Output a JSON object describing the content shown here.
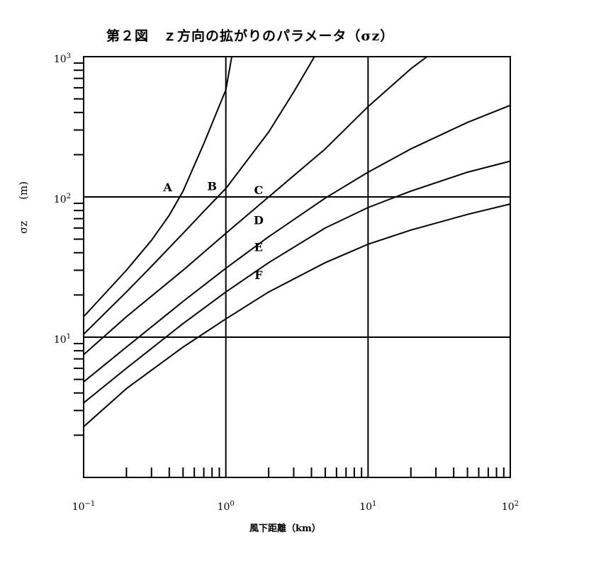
{
  "title": "第２図　ｚ方向の拡がりのパラメータ（σz）",
  "xlabel": "風下距離（km）",
  "ylabel": "σz　　(m)",
  "chart_data": {
    "type": "line",
    "scale": {
      "x": "log",
      "y": "log"
    },
    "xlim": [
      0.1,
      100
    ],
    "ylim": [
      1,
      1000
    ],
    "grid": true,
    "x_ticks": [
      {
        "value": 0.1,
        "base": "10",
        "exp": "−1"
      },
      {
        "value": 1,
        "base": "10",
        "exp": "0"
      },
      {
        "value": 10,
        "base": "10",
        "exp": "1"
      },
      {
        "value": 100,
        "base": "10",
        "exp": "2"
      }
    ],
    "y_ticks": [
      {
        "value": 10,
        "base": "10",
        "exp": "1"
      },
      {
        "value": 100,
        "base": "10",
        "exp": "2"
      },
      {
        "value": 1000,
        "base": "10",
        "exp": "3"
      }
    ],
    "series": [
      {
        "name": "A",
        "x": [
          0.1,
          0.2,
          0.3,
          0.4,
          0.5,
          0.7,
          1.0,
          1.1
        ],
        "y": [
          14,
          30,
          49,
          74,
          110,
          240,
          580,
          1000
        ],
        "label_at": [
          0.39,
          110
        ]
      },
      {
        "name": "B",
        "x": [
          0.1,
          0.2,
          0.3,
          0.5,
          0.7,
          1.0,
          2.0,
          3.0,
          4.2
        ],
        "y": [
          10.5,
          21,
          32,
          55,
          79,
          115,
          290,
          560,
          1000
        ],
        "label_at": [
          0.8,
          112
        ]
      },
      {
        "name": "C",
        "x": [
          0.1,
          0.2,
          0.5,
          1.0,
          2.0,
          5.0,
          10.0,
          20.0,
          26.0
        ],
        "y": [
          7.5,
          14,
          30,
          55,
          100,
          220,
          440,
          820,
          1000
        ],
        "label_at": [
          1.7,
          105
        ]
      },
      {
        "name": "D",
        "x": [
          0.1,
          0.2,
          0.5,
          1.0,
          2.0,
          5.0,
          10.0,
          20.0,
          50.0,
          100.0
        ],
        "y": [
          4.8,
          8.5,
          18,
          31,
          52,
          98,
          150,
          220,
          340,
          450
        ],
        "label_at": [
          1.7,
          64
        ]
      },
      {
        "name": "E",
        "x": [
          0.1,
          0.2,
          0.5,
          1.0,
          2.0,
          5.0,
          10.0,
          20.0,
          50.0,
          100.0
        ],
        "y": [
          3.4,
          6,
          12.5,
          21,
          34,
          60,
          84,
          110,
          150,
          180
        ],
        "label_at": [
          1.7,
          41
        ]
      },
      {
        "name": "F",
        "x": [
          0.1,
          0.2,
          0.5,
          1.0,
          2.0,
          5.0,
          10.0,
          20.0,
          50.0,
          100.0
        ],
        "y": [
          2.3,
          4.3,
          8.5,
          13.5,
          21,
          34,
          46,
          58,
          75,
          89
        ],
        "label_at": [
          1.7,
          26
        ]
      }
    ]
  }
}
